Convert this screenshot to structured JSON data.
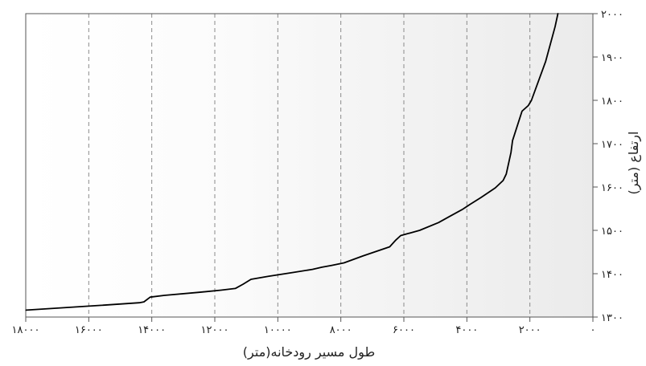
{
  "chart_data": {
    "type": "line",
    "title": "",
    "xlabel": "طول مسیر رودخانه(متر)",
    "ylabel": "ارتفاع (متر)",
    "xlim": [
      18000,
      0
    ],
    "ylim": [
      1300,
      2000
    ],
    "x_ticks": [
      18000,
      16000,
      14000,
      12000,
      10000,
      8000,
      6000,
      4000,
      2000,
      0
    ],
    "x_tick_labels": [
      "۱۸۰۰۰",
      "۱۶۰۰۰",
      "۱۴۰۰۰",
      "۱۲۰۰۰",
      "۱۰۰۰۰",
      "۸۰۰۰",
      "۶۰۰۰",
      "۴۰۰۰",
      "۲۰۰۰",
      "۰"
    ],
    "y_ticks": [
      1300,
      1400,
      1500,
      1600,
      1700,
      1800,
      1900,
      2000
    ],
    "y_tick_labels": [
      "۱۳۰۰",
      "۱۴۰۰",
      "۱۵۰۰",
      "۱۶۰۰",
      "۱۷۰۰",
      "۱۸۰۰",
      "۱۹۰۰",
      "۲۰۰۰"
    ],
    "grid": {
      "x": true,
      "y": false,
      "style": "dashed"
    },
    "background": "gradient white to light gray toward right",
    "line_color": "#000000",
    "series": [
      {
        "x": [
          17991,
          16500,
          15600,
          14400,
          14250,
          14050,
          13600,
          12500,
          11800,
          11350,
          11100,
          10850,
          10300,
          9500,
          8900,
          8600,
          8300,
          7900,
          7300,
          6450,
          6250,
          6100,
          5500,
          4900,
          4550,
          4150,
          3900,
          3550,
          3100,
          2850,
          2750,
          2600,
          2550,
          2250,
          2050,
          1950,
          1500,
          1200,
          1110
        ],
        "y": [
          1316,
          1323,
          1327,
          1333,
          1335,
          1346,
          1350,
          1357,
          1362,
          1366,
          1376,
          1387,
          1394,
          1403,
          1410,
          1415,
          1419,
          1425,
          1441,
          1462,
          1478,
          1488,
          1500,
          1518,
          1532,
          1548,
          1560,
          1576,
          1598,
          1615,
          1630,
          1680,
          1707,
          1775,
          1788,
          1800,
          1890,
          1970,
          2000
        ]
      }
    ]
  }
}
